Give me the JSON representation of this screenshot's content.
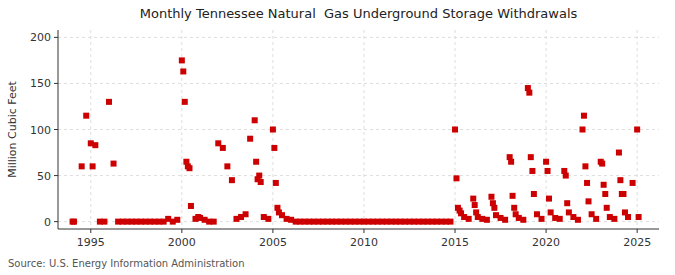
{
  "chart_data": {
    "type": "scatter",
    "title": "Monthly Tennessee Natural  Gas Underground Storage Withdrawals",
    "y_label": "Million Cubic Feet",
    "annotations": [
      "Source: U.S. Energy Information Administration"
    ],
    "color": "#cc0000",
    "marker": "square",
    "grid": true,
    "xlim": [
      1993.2,
      2026.2
    ],
    "ylim": [
      -8,
      208
    ],
    "yticks": [
      0,
      50,
      100,
      150,
      200
    ],
    "xticks": [
      1995,
      2000,
      2005,
      2010,
      2015,
      2020,
      2025
    ],
    "x": [
      1994.0,
      1994.08,
      1994.5,
      1994.75,
      1995.0,
      1995.1,
      1995.25,
      1995.5,
      1995.75,
      1996.0,
      1996.25,
      1996.5,
      1996.75,
      1997.0,
      1997.25,
      1997.5,
      1997.75,
      1998.0,
      1998.25,
      1998.5,
      1998.75,
      1999.0,
      1999.25,
      1999.5,
      1999.75,
      2000.0,
      2000.08,
      2000.16,
      2000.25,
      2000.33,
      2000.42,
      2000.5,
      2000.75,
      2000.9,
      2001.0,
      2001.25,
      2001.5,
      2001.75,
      2002.0,
      2002.25,
      2002.5,
      2002.75,
      2003.0,
      2003.25,
      2003.5,
      2003.75,
      2004.0,
      2004.08,
      2004.16,
      2004.25,
      2004.33,
      2004.5,
      2004.75,
      2005.0,
      2005.08,
      2005.16,
      2005.25,
      2005.33,
      2005.5,
      2005.75,
      2006.0,
      2006.25,
      2006.5,
      2006.75,
      2007.0,
      2007.25,
      2007.5,
      2007.75,
      2008.0,
      2008.25,
      2008.5,
      2008.75,
      2009.0,
      2009.25,
      2009.5,
      2009.75,
      2010.0,
      2010.25,
      2010.5,
      2010.75,
      2011.0,
      2011.25,
      2011.5,
      2011.75,
      2012.0,
      2012.25,
      2012.5,
      2012.75,
      2013.0,
      2013.25,
      2013.5,
      2013.75,
      2014.0,
      2014.25,
      2014.5,
      2014.75,
      2015.0,
      2015.08,
      2015.16,
      2015.25,
      2015.33,
      2015.5,
      2015.75,
      2016.0,
      2016.08,
      2016.16,
      2016.25,
      2016.5,
      2016.75,
      2017.0,
      2017.08,
      2017.16,
      2017.25,
      2017.5,
      2017.75,
      2018.0,
      2018.08,
      2018.16,
      2018.25,
      2018.33,
      2018.5,
      2018.75,
      2019.0,
      2019.08,
      2019.16,
      2019.25,
      2019.33,
      2019.5,
      2019.75,
      2020.0,
      2020.08,
      2020.16,
      2020.25,
      2020.5,
      2020.75,
      2021.0,
      2021.08,
      2021.16,
      2021.25,
      2021.5,
      2021.75,
      2022.0,
      2022.08,
      2022.16,
      2022.25,
      2022.33,
      2022.5,
      2022.75,
      2023.0,
      2023.08,
      2023.16,
      2023.25,
      2023.33,
      2023.5,
      2023.75,
      2024.0,
      2024.08,
      2024.16,
      2024.25,
      2024.33,
      2024.5,
      2024.75,
      2025.0,
      2025.08
    ],
    "values": [
      0,
      0,
      60,
      115,
      85,
      60,
      83,
      0,
      0,
      130,
      63,
      0,
      0,
      0,
      0,
      0,
      0,
      0,
      0,
      0,
      0,
      0,
      3,
      0,
      2,
      175,
      163,
      130,
      65,
      60,
      58,
      17,
      3,
      5,
      4,
      2,
      0,
      0,
      85,
      80,
      60,
      45,
      3,
      5,
      8,
      90,
      110,
      65,
      46,
      50,
      43,
      5,
      3,
      100,
      80,
      42,
      15,
      10,
      7,
      3,
      2,
      0,
      0,
      0,
      0,
      0,
      0,
      0,
      0,
      0,
      0,
      0,
      0,
      0,
      0,
      0,
      0,
      0,
      0,
      0,
      0,
      0,
      0,
      0,
      0,
      0,
      0,
      0,
      0,
      0,
      0,
      0,
      0,
      0,
      0,
      0,
      100,
      47,
      15,
      12,
      9,
      5,
      3,
      25,
      18,
      10,
      5,
      3,
      2,
      27,
      20,
      15,
      7,
      4,
      2,
      70,
      65,
      28,
      15,
      8,
      4,
      2,
      145,
      140,
      70,
      55,
      30,
      8,
      3,
      65,
      55,
      25,
      10,
      4,
      3,
      55,
      50,
      20,
      10,
      5,
      2,
      100,
      115,
      60,
      42,
      22,
      8,
      3,
      65,
      63,
      40,
      30,
      15,
      5,
      3,
      75,
      45,
      30,
      30,
      10,
      5,
      42,
      100,
      5
    ]
  }
}
